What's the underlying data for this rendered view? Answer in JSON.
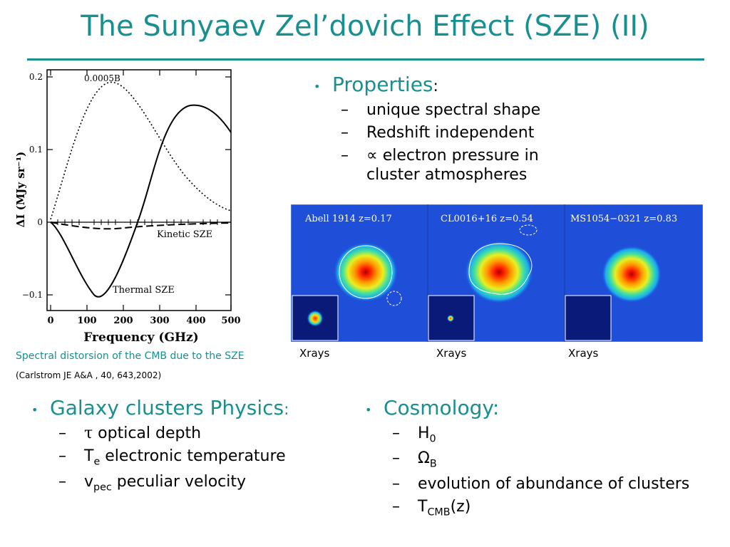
{
  "title": "The Sunyaev Zel’dovich Effect (SZE) (II)",
  "plot": {
    "dotted_label": "0.0005B",
    "kinetic_label": "Kinetic SZE",
    "thermal_label": "Thermal SZE",
    "ylabel": "ΔI  (MJy sr⁻¹)",
    "xlabel": "Frequency (GHz)",
    "yticks": [
      "0.2",
      "0.1",
      "0",
      "−0.1"
    ],
    "xticks": [
      "0",
      "100",
      "200",
      "300",
      "400",
      "500"
    ]
  },
  "caption": "Spectral distorsion of the CMB due to the SZE",
  "reference": "(Carlstrom JE A&A , 40, 643,2002)",
  "properties": {
    "head": "Properties",
    "colon": ":",
    "items": [
      "unique spectral shape",
      "Redshift independent",
      "electron pressure in",
      "cluster atmospheres"
    ],
    "propto": "∝"
  },
  "maps": {
    "labels": [
      "Abell 1914 z=0.17",
      "CL0016+16 z=0.54",
      "MS1054−0321 z=0.83"
    ],
    "inset_label": "Xrays"
  },
  "galaxy": {
    "head": "Galaxy clusters Physics",
    "colon": ":",
    "tau": "τ",
    "tau_text": " optical depth",
    "te_main": "T",
    "te_sub": "e",
    "te_text": " electronic temperature",
    "v_main": "v",
    "v_sub": "pec",
    "v_text": " peculiar velocity"
  },
  "cosmology": {
    "head": "Cosmology:",
    "h_main": "H",
    "h_sub": "0",
    "omega_main": "Ω",
    "omega_sub": "B",
    "evolution": "evolution of abundance of clusters",
    "t_main": "T",
    "t_sub": "CMB",
    "t_tail": "(z)"
  },
  "colors": {
    "teal": "#1a8f8f",
    "map_bg": "#1f4fd8"
  }
}
